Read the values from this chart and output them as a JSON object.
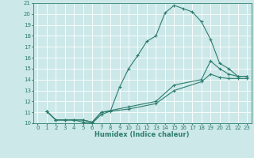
{
  "title": "",
  "xlabel": "Humidex (Indice chaleur)",
  "xlim": [
    -0.5,
    23.5
  ],
  "ylim": [
    10,
    21
  ],
  "yticks": [
    10,
    11,
    12,
    13,
    14,
    15,
    16,
    17,
    18,
    19,
    20,
    21
  ],
  "xticks": [
    0,
    1,
    2,
    3,
    4,
    5,
    6,
    7,
    8,
    9,
    10,
    11,
    12,
    13,
    14,
    15,
    16,
    17,
    18,
    19,
    20,
    21,
    22,
    23
  ],
  "bg_color": "#cce8e8",
  "grid_color": "#ffffff",
  "line_color": "#2e7d6e",
  "line1_x": [
    1,
    2,
    3,
    4,
    5,
    6,
    7,
    8,
    9,
    10,
    11,
    12,
    13,
    14,
    15,
    16,
    17,
    18,
    19,
    20,
    21,
    22,
    23
  ],
  "line1_y": [
    11.1,
    10.3,
    10.3,
    10.3,
    10.1,
    10.0,
    10.8,
    11.1,
    13.3,
    15.0,
    16.2,
    17.5,
    18.0,
    20.1,
    20.8,
    20.5,
    20.2,
    19.3,
    17.7,
    15.5,
    15.0,
    14.3,
    14.3
  ],
  "line2_x": [
    1,
    2,
    3,
    4,
    5,
    6,
    7,
    10,
    13,
    15,
    18,
    19,
    20,
    21,
    22,
    23
  ],
  "line2_y": [
    11.1,
    10.3,
    10.3,
    10.3,
    10.3,
    10.1,
    11.0,
    11.5,
    12.0,
    13.5,
    14.0,
    15.7,
    15.0,
    14.5,
    14.3,
    14.3
  ],
  "line3_x": [
    1,
    2,
    3,
    4,
    5,
    6,
    7,
    10,
    13,
    15,
    18,
    19,
    20,
    21,
    22,
    23
  ],
  "line3_y": [
    11.1,
    10.3,
    10.3,
    10.3,
    10.3,
    10.1,
    11.0,
    11.3,
    11.8,
    13.0,
    13.8,
    14.5,
    14.2,
    14.1,
    14.1,
    14.1
  ],
  "tick_fontsize": 5.0,
  "xlabel_fontsize": 6.0,
  "linewidth": 0.8,
  "markersize": 3.0
}
